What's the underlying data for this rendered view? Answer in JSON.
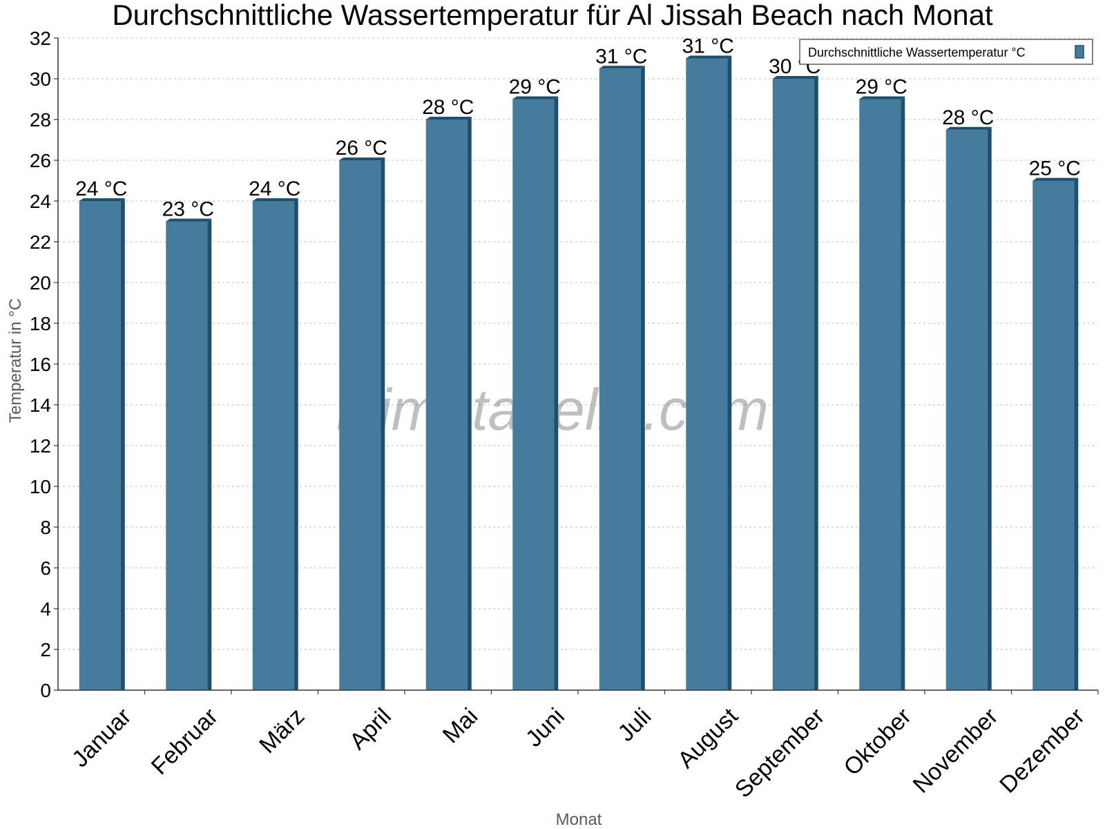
{
  "chart_data": {
    "type": "bar",
    "title": "Durchschnittliche Wassertemperatur für Al Jissah Beach nach Monat",
    "xlabel": "Monat",
    "ylabel": "Temperatur in °C",
    "ylim": [
      0,
      32
    ],
    "ytick_step": 2,
    "grid": true,
    "legend_position": "top-right",
    "categories": [
      "Januar",
      "Februar",
      "März",
      "April",
      "Mai",
      "Juni",
      "Juli",
      "August",
      "September",
      "Oktober",
      "November",
      "Dezember"
    ],
    "series": [
      {
        "name": "Durchschnittliche Wassertemperatur °C",
        "values": [
          24,
          23,
          24,
          26,
          28,
          29,
          30.5,
          31,
          30,
          29,
          27.5,
          25
        ],
        "labels": [
          "24 °C",
          "23 °C",
          "24 °C",
          "26 °C",
          "28 °C",
          "29 °C",
          "31 °C",
          "31 °C",
          "30 °C",
          "29 °C",
          "28 °C",
          "25 °C"
        ],
        "color": "#457b9d",
        "side_color": "#1d4f6e"
      }
    ],
    "watermark": "klimatabelle.com"
  }
}
